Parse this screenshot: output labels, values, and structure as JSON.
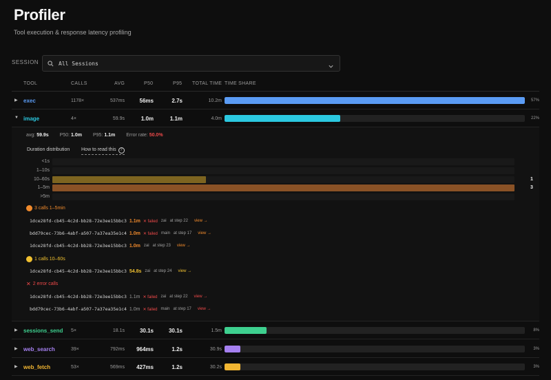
{
  "header": {
    "title": "Profiler",
    "subtitle": "Tool execution & response latency profiling"
  },
  "session": {
    "label": "SESSION",
    "value": "All Sessions"
  },
  "table": {
    "columns": [
      "TOOL",
      "CALLS",
      "AVG",
      "P50",
      "P95",
      "TOTAL TIME",
      "TIME SHARE"
    ],
    "rows": [
      {
        "tool": "exec",
        "calls": "1178×",
        "avg": "537ms",
        "p50": "56ms",
        "p95": "2.7s",
        "total": "10.2m",
        "share_pct": "57%",
        "share": 0.57,
        "color": "#5b9cf5"
      },
      {
        "tool": "image",
        "calls": "4×",
        "avg": "59.9s",
        "p50": "1.0m",
        "p95": "1.1m",
        "total": "4.0m",
        "share_pct": "22%",
        "share": 0.22,
        "color": "#2bc8e0"
      },
      {
        "tool": "sessions_send",
        "calls": "5×",
        "avg": "18.1s",
        "p50": "30.1s",
        "p95": "30.1s",
        "total": "1.5m",
        "share_pct": "8%",
        "share": 0.08,
        "color": "#3ed08f"
      },
      {
        "tool": "web_search",
        "calls": "39×",
        "avg": "792ms",
        "p50": "964ms",
        "p95": "1.2s",
        "total": "30.9s",
        "share_pct": "3%",
        "share": 0.03,
        "color": "#a580f0"
      },
      {
        "tool": "web_fetch",
        "calls": "53×",
        "avg": "569ms",
        "p50": "427ms",
        "p95": "1.2s",
        "total": "30.2s",
        "share_pct": "3%",
        "share": 0.03,
        "color": "#f2b632"
      }
    ]
  },
  "detail": {
    "avg_label": "avg:",
    "avg": "59.9s",
    "p50_label": "P50:",
    "p50": "1.0m",
    "p95_label": "P95:",
    "p95": "1.1m",
    "err_label": "Error rate:",
    "err": "50.0%",
    "dist_title": "Duration distribution",
    "howto": "How to read this",
    "howto_icon": "?",
    "bins": [
      {
        "label": "<1s",
        "count": "",
        "fraction": 0,
        "color": "#7a5520"
      },
      {
        "label": "1–10s",
        "count": "",
        "fraction": 0,
        "color": "#7a5520"
      },
      {
        "label": "10–60s",
        "count": "1",
        "fraction": 0.333,
        "color": "#7d6420"
      },
      {
        "label": "1–5m",
        "count": "3",
        "fraction": 1.0,
        "color": "#8a5226"
      },
      {
        "label": ">5m",
        "count": "",
        "fraction": 0,
        "color": "#7a5520"
      }
    ],
    "groups": {
      "g1_head": "3 calls 1–5min",
      "g1_color": "#f08a2c",
      "g2_head": "1 calls 10–60s",
      "g2_color": "#f0c030",
      "g3_head": "2 error calls",
      "g3_icon": "✕",
      "g3_color": "#f04a4a"
    },
    "calls": [
      {
        "id": "1dce28fd-cb45-4c2d-bb28-72e3ee15bbc3",
        "dur": "1.1m",
        "fail": "✕ failed",
        "sess": "zai",
        "step": "at step 22",
        "view": "view →",
        "dur_color": "#f08a2c",
        "view_color": "#f08a2c"
      },
      {
        "id": "bdd79cec-73b6-4abf-a507-7a37ea35e1c4",
        "dur": "1.0m",
        "fail": "✕ failed",
        "sess": "main",
        "step": "at step 17",
        "view": "view →",
        "dur_color": "#f08a2c",
        "view_color": "#f08a2c"
      },
      {
        "id": "1dce28fd-cb45-4c2d-bb28-72e3ee15bbc3",
        "dur": "1.0m",
        "fail": "",
        "sess": "zai",
        "step": "at step 23",
        "view": "view →",
        "dur_color": "#f08a2c",
        "view_color": "#f08a2c"
      },
      {
        "id": "1dce28fd-cb45-4c2d-bb28-72e3ee15bbc3",
        "dur": "54.8s",
        "fail": "",
        "sess": "zai",
        "step": "at step 24",
        "view": "view →",
        "dur_color": "#f0c030",
        "view_color": "#f0c030"
      },
      {
        "id": "1dce28fd-cb45-4c2d-bb28-72e3ee15bbc3",
        "dur": "1.1m",
        "fail": "✕ failed",
        "sess": "zai",
        "step": "at step 22",
        "view": "view →",
        "dur_color": "#9a9a9a",
        "view_color": "#f04a4a"
      },
      {
        "id": "bdd79cec-73b6-4abf-a507-7a37ea35e1c4",
        "dur": "1.0m",
        "fail": "✕ failed",
        "sess": "main",
        "step": "at step 17",
        "view": "view →",
        "dur_color": "#9a9a9a",
        "view_color": "#f04a4a"
      }
    ]
  },
  "icons": {
    "search": "search-icon",
    "chevron": "chevron-down-icon",
    "collapsed": "▶",
    "expanded": "▼"
  }
}
